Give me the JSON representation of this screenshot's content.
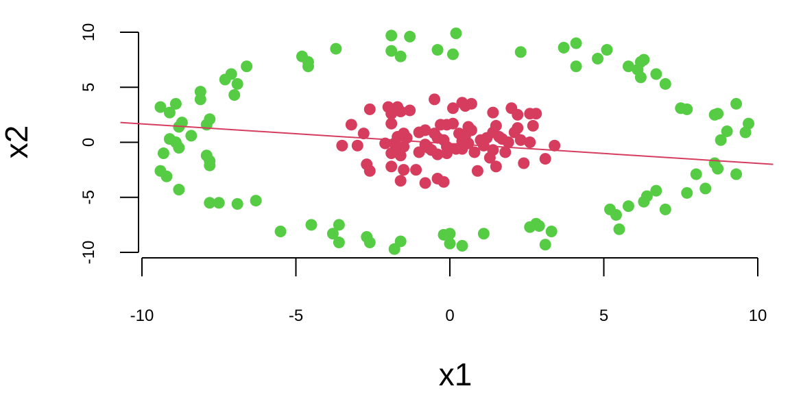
{
  "chart_data": {
    "type": "scatter",
    "title": "",
    "xlabel": "x1",
    "ylabel": "x2",
    "xlim": [
      -10,
      10
    ],
    "ylim": [
      -10,
      10
    ],
    "xticks": [
      -10,
      -5,
      0,
      5,
      10
    ],
    "yticks": [
      -10,
      -5,
      0,
      5,
      10
    ],
    "grid": false,
    "colors": {
      "outer": "#55cc44",
      "inner": "#d63c5e",
      "line": "#d63c5e",
      "axis": "#000000"
    },
    "fit_line": {
      "x": [
        -10.7,
        10.5
      ],
      "y": [
        1.8,
        -2.0
      ]
    },
    "series": [
      {
        "color": "#55cc44",
        "points": [
          [
            -9.4,
            3.2
          ],
          [
            -9.1,
            2.7
          ],
          [
            -8.9,
            3.5
          ],
          [
            -8.8,
            1.4
          ],
          [
            -8.7,
            1.8
          ],
          [
            -9.1,
            0.3
          ],
          [
            -8.9,
            0.0
          ],
          [
            -8.8,
            -0.5
          ],
          [
            -9.3,
            -1.0
          ],
          [
            -9.4,
            -2.6
          ],
          [
            -9.2,
            -3.1
          ],
          [
            -8.8,
            -4.3
          ],
          [
            -8.1,
            4.6
          ],
          [
            -8.1,
            3.9
          ],
          [
            -7.9,
            1.6
          ],
          [
            -7.8,
            2.1
          ],
          [
            -8.4,
            0.6
          ],
          [
            -7.9,
            -1.2
          ],
          [
            -7.8,
            -1.7
          ],
          [
            -7.8,
            -2.1
          ],
          [
            -7.8,
            -5.5
          ],
          [
            -7.5,
            -5.5
          ],
          [
            -6.9,
            -5.6
          ],
          [
            -6.3,
            -5.3
          ],
          [
            -7.3,
            5.7
          ],
          [
            -7.1,
            6.2
          ],
          [
            -6.9,
            5.3
          ],
          [
            -7.0,
            4.3
          ],
          [
            -6.6,
            6.9
          ],
          [
            -4.8,
            7.8
          ],
          [
            -4.6,
            7.3
          ],
          [
            -4.6,
            6.9
          ],
          [
            -3.7,
            8.5
          ],
          [
            -5.5,
            -8.1
          ],
          [
            -4.5,
            -7.5
          ],
          [
            -3.8,
            -8.3
          ],
          [
            -3.6,
            -7.5
          ],
          [
            -3.6,
            -9.1
          ],
          [
            -2.7,
            -8.6
          ],
          [
            -2.6,
            -9.1
          ],
          [
            -1.8,
            -9.7
          ],
          [
            -1.6,
            -9.0
          ],
          [
            -1.9,
            9.7
          ],
          [
            -1.9,
            8.3
          ],
          [
            -1.6,
            7.8
          ],
          [
            -1.3,
            9.6
          ],
          [
            -0.4,
            8.4
          ],
          [
            0.1,
            8.0
          ],
          [
            0.2,
            9.9
          ],
          [
            2.3,
            8.2
          ],
          [
            0.0,
            -8.3
          ],
          [
            -0.2,
            -8.4
          ],
          [
            0.0,
            -9.2
          ],
          [
            0.4,
            -9.4
          ],
          [
            1.1,
            -8.3
          ],
          [
            2.6,
            -7.7
          ],
          [
            2.8,
            -7.4
          ],
          [
            2.9,
            -7.6
          ],
          [
            3.1,
            -9.3
          ],
          [
            3.3,
            -8.1
          ],
          [
            3.7,
            8.6
          ],
          [
            4.1,
            9.0
          ],
          [
            4.1,
            6.9
          ],
          [
            4.8,
            7.6
          ],
          [
            5.1,
            8.4
          ],
          [
            5.8,
            6.9
          ],
          [
            6.1,
            6.6
          ],
          [
            6.2,
            7.3
          ],
          [
            6.3,
            7.5
          ],
          [
            6.2,
            5.9
          ],
          [
            6.7,
            6.2
          ],
          [
            7.0,
            5.3
          ],
          [
            5.2,
            -6.1
          ],
          [
            5.4,
            -6.6
          ],
          [
            5.5,
            -7.9
          ],
          [
            5.8,
            -5.8
          ],
          [
            6.3,
            -5.4
          ],
          [
            6.4,
            -4.9
          ],
          [
            6.7,
            -4.4
          ],
          [
            7.0,
            -6.1
          ],
          [
            7.5,
            3.1
          ],
          [
            7.7,
            3.0
          ],
          [
            8.6,
            2.5
          ],
          [
            8.7,
            2.6
          ],
          [
            9.3,
            3.5
          ],
          [
            8.8,
            0.2
          ],
          [
            9.0,
            1.0
          ],
          [
            9.7,
            1.7
          ],
          [
            9.6,
            0.9
          ],
          [
            7.7,
            -4.6
          ],
          [
            8.0,
            -2.9
          ],
          [
            8.3,
            -4.2
          ],
          [
            8.6,
            -1.9
          ],
          [
            8.7,
            -2.4
          ],
          [
            9.3,
            -2.9
          ]
        ]
      },
      {
        "color": "#d63c5e",
        "points": [
          [
            -3.2,
            1.6
          ],
          [
            -2.8,
            0.8
          ],
          [
            -2.6,
            3.0
          ],
          [
            -3.5,
            -0.3
          ],
          [
            -3.0,
            -0.3
          ],
          [
            -2.7,
            -2.0
          ],
          [
            -2.6,
            -2.6
          ],
          [
            -2.1,
            -0.1
          ],
          [
            -2.0,
            3.2
          ],
          [
            -1.9,
            2.6
          ],
          [
            -1.9,
            1.7
          ],
          [
            -1.8,
            3.0
          ],
          [
            -1.7,
            3.2
          ],
          [
            -1.6,
            2.8
          ],
          [
            -1.3,
            2.9
          ],
          [
            -1.7,
            0.5
          ],
          [
            -1.5,
            0.8
          ],
          [
            -1.4,
            0.4
          ],
          [
            -1.8,
            -0.1
          ],
          [
            -1.5,
            -0.4
          ],
          [
            -1.7,
            -0.8
          ],
          [
            -1.9,
            -1.0
          ],
          [
            -1.6,
            -1.2
          ],
          [
            -1.9,
            -2.2
          ],
          [
            -1.5,
            -2.5
          ],
          [
            -1.1,
            -2.5
          ],
          [
            -1.6,
            -3.5
          ],
          [
            -0.8,
            -3.7
          ],
          [
            -0.4,
            -3.3
          ],
          [
            -0.2,
            -3.6
          ],
          [
            -0.5,
            3.9
          ],
          [
            -0.3,
            1.6
          ],
          [
            -0.1,
            1.6
          ],
          [
            0.1,
            1.7
          ],
          [
            0.1,
            3.1
          ],
          [
            -1.0,
            0.9
          ],
          [
            -0.8,
            1.1
          ],
          [
            -0.5,
            0.8
          ],
          [
            -0.4,
            0.4
          ],
          [
            -0.2,
            0.2
          ],
          [
            -0.8,
            -0.2
          ],
          [
            -0.7,
            -0.5
          ],
          [
            -0.6,
            -0.7
          ],
          [
            -0.4,
            -1.1
          ],
          [
            -1.0,
            -0.9
          ],
          [
            -0.1,
            -0.4
          ],
          [
            0.2,
            -0.6
          ],
          [
            -0.1,
            -1.0
          ],
          [
            0.3,
            0.8
          ],
          [
            0.5,
            0.6
          ],
          [
            0.4,
            0.1
          ],
          [
            0.6,
            -0.1
          ],
          [
            0.4,
            -0.6
          ],
          [
            0.8,
            -0.9
          ],
          [
            0.6,
            1.4
          ],
          [
            0.7,
            1.1
          ],
          [
            0.4,
            3.6
          ],
          [
            0.5,
            3.3
          ],
          [
            0.7,
            3.5
          ],
          [
            0.9,
            -2.6
          ],
          [
            1.0,
            0.2
          ],
          [
            1.2,
            0.4
          ],
          [
            1.1,
            -0.3
          ],
          [
            1.4,
            -0.7
          ],
          [
            1.3,
            -1.4
          ],
          [
            1.5,
            -2.2
          ],
          [
            1.4,
            0.9
          ],
          [
            1.5,
            1.5
          ],
          [
            1.4,
            2.7
          ],
          [
            1.6,
            0.5
          ],
          [
            1.7,
            0.3
          ],
          [
            1.8,
            -0.9
          ],
          [
            1.9,
            0.0
          ],
          [
            2.0,
            3.1
          ],
          [
            2.2,
            2.5
          ],
          [
            2.2,
            1.3
          ],
          [
            2.1,
            0.9
          ],
          [
            2.3,
            0.2
          ],
          [
            2.4,
            -1.9
          ],
          [
            2.6,
            2.6
          ],
          [
            2.8,
            2.6
          ],
          [
            2.7,
            1.5
          ],
          [
            2.6,
            0.0
          ],
          [
            3.1,
            -1.5
          ],
          [
            3.4,
            -0.3
          ]
        ]
      }
    ]
  }
}
